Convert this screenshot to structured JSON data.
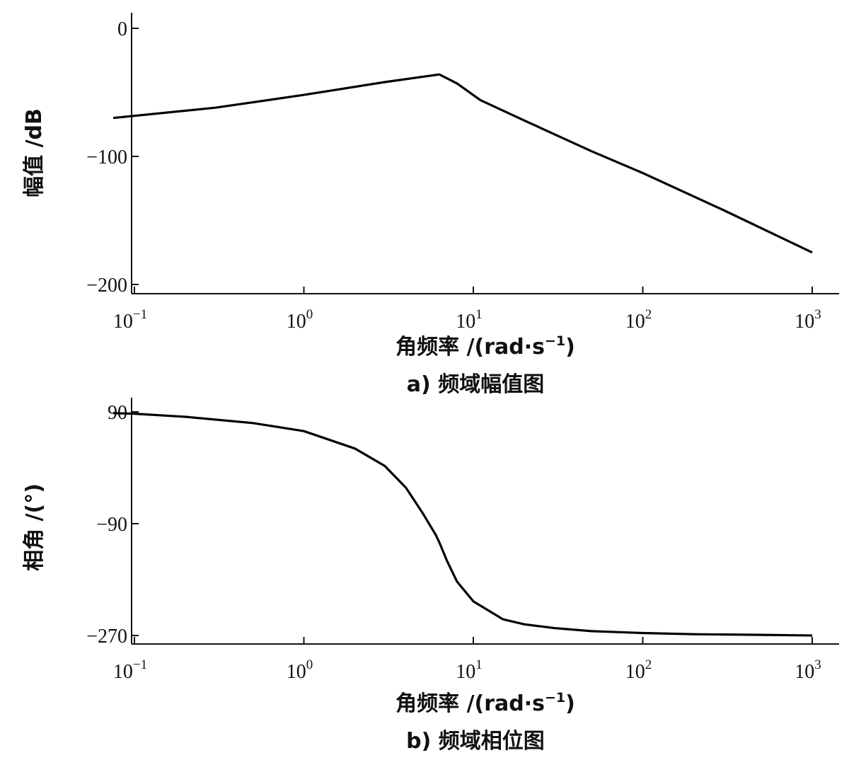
{
  "chart_data": [
    {
      "type": "line",
      "caption": "a)  频域幅值图",
      "xlabel": "角频率 /(rad·s",
      "xlabel_sup": "−1",
      "xlabel_close": ")",
      "ylabel": "幅值 /dB",
      "x_scale": "log",
      "xlim": [
        0.07,
        1300
      ],
      "ylim": [
        -200,
        0
      ],
      "x_ticks": [
        0.1,
        1,
        10,
        100,
        1000
      ],
      "x_tick_labels": [
        {
          "base": "10",
          "exp": "−1"
        },
        {
          "base": "10",
          "exp": "0"
        },
        {
          "base": "10",
          "exp": "1"
        },
        {
          "base": "10",
          "exp": "2"
        },
        {
          "base": "10",
          "exp": "3"
        }
      ],
      "y_ticks": [
        0,
        -100,
        -200
      ],
      "y_tick_labels": [
        "0",
        "−100",
        "−200"
      ],
      "grid": false,
      "series": [
        {
          "x": [
            0.075,
            0.3,
            1,
            3,
            6.3,
            8,
            11,
            20,
            50,
            100,
            300,
            1000
          ],
          "y": [
            -70,
            -62,
            -52,
            -42,
            -36,
            -43,
            -56,
            -72,
            -96,
            -113,
            -142,
            -175
          ]
        }
      ]
    },
    {
      "type": "line",
      "caption": "b)  频域相位图",
      "xlabel": "角频率 /(rad·s",
      "xlabel_sup": "−1",
      "xlabel_close": ")",
      "ylabel": "相角 /(°)",
      "x_scale": "log",
      "xlim": [
        0.07,
        1300
      ],
      "ylim": [
        -280,
        100
      ],
      "x_ticks": [
        0.1,
        1,
        10,
        100,
        1000
      ],
      "x_tick_labels": [
        {
          "base": "10",
          "exp": "−1"
        },
        {
          "base": "10",
          "exp": "0"
        },
        {
          "base": "10",
          "exp": "1"
        },
        {
          "base": "10",
          "exp": "2"
        },
        {
          "base": "10",
          "exp": "3"
        }
      ],
      "y_ticks": [
        90,
        -90,
        -270
      ],
      "y_tick_labels": [
        "90",
        "−90",
        "−270"
      ],
      "grid": false,
      "series": [
        {
          "x": [
            0.075,
            0.1,
            0.2,
            0.5,
            1,
            2,
            3,
            4,
            5,
            6,
            6.3,
            7,
            8,
            10,
            15,
            20,
            30,
            50,
            100,
            200,
            500,
            1000
          ],
          "y": [
            88,
            87,
            82,
            72,
            59,
            31,
            3,
            -32,
            -72,
            -108,
            -120,
            -150,
            -183,
            -215,
            -244,
            -252,
            -258,
            -263,
            -266,
            -268,
            -269,
            -270
          ]
        }
      ]
    }
  ]
}
